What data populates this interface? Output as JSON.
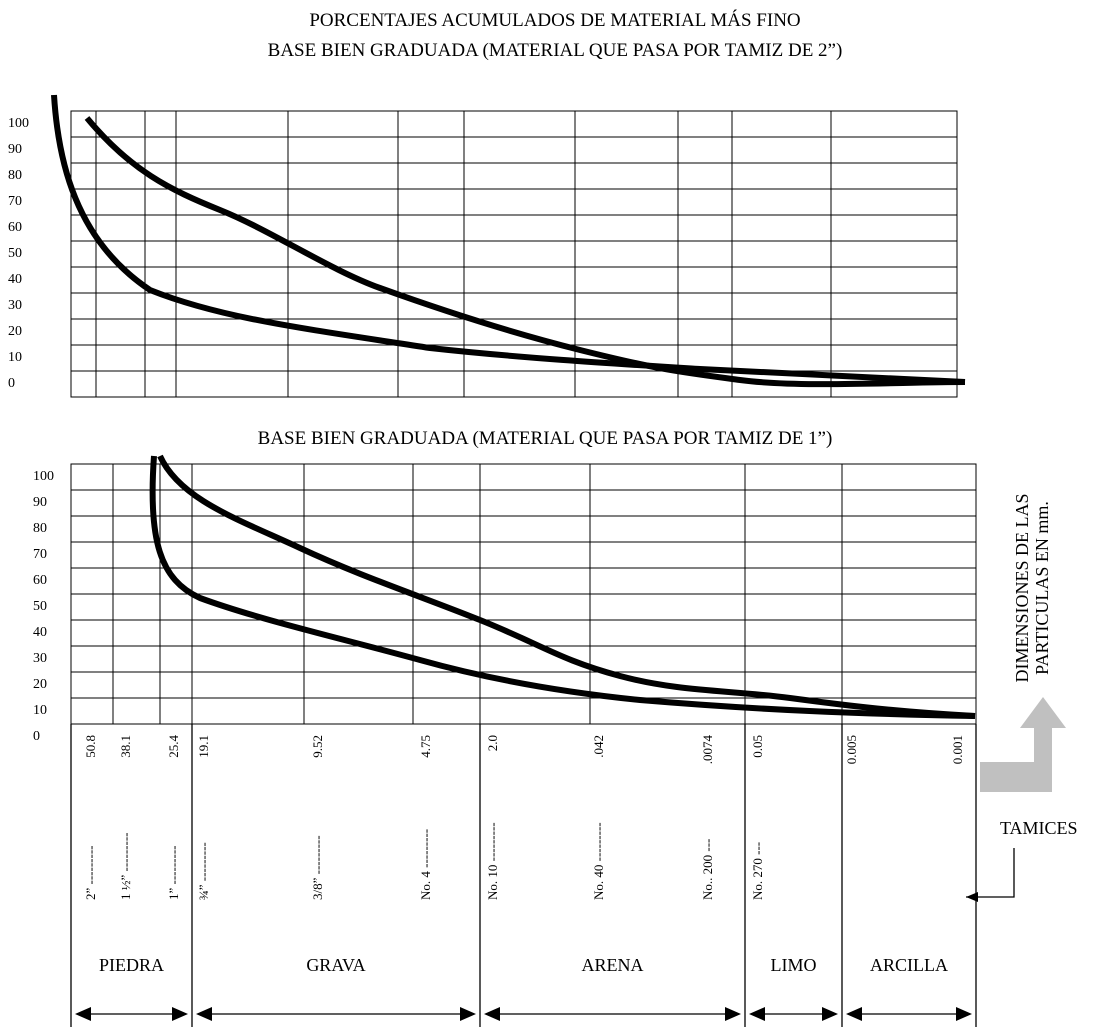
{
  "title_line1": "PORCENTAJES ACUMULADOS DE MATERIAL MÁS FINO",
  "title_line2": "BASE BIEN GRADUADA (MATERIAL QUE PASA POR TAMIZ DE 2”)",
  "title_line3": "BASE BIEN GRADUADA (MATERIAL QUE PASA POR TAMIZ DE 1”)",
  "side_label_line1": "DIMENSIONES DE LAS",
  "side_label_line2": "PARTICULAS EN mm.",
  "tamices_label": "TAMICES",
  "colors": {
    "lines": "#000000",
    "arrow": "#c0c0c0",
    "background": "#ffffff"
  },
  "chart_data": [
    {
      "type": "line",
      "title": "BASE BIEN GRADUADA (MATERIAL QUE PASA POR TAMIZ DE 2”)",
      "yticks": [
        "100",
        "90",
        "80",
        "70",
        "60",
        "50",
        "40",
        "30",
        "20",
        "10",
        "0"
      ],
      "ylim": [
        0,
        100
      ],
      "x_scale": "sieve positions (log)",
      "series": [
        {
          "x": [
            "2”",
            "1”",
            "3/4”",
            "3/8”",
            "No. 4",
            "No. 10",
            "No. 40",
            "No. 200",
            "0.005"
          ],
          "values": [
            100,
            87,
            74,
            55,
            41,
            30,
            19,
            10,
            6
          ]
        },
        {
          "x": [
            "2”",
            "1½”",
            "1”",
            "3/4”",
            "3/8”",
            "No. 4",
            "No. 10",
            "No. 40",
            "No. 200",
            "0.005",
            "0.001"
          ],
          "values": [
            68,
            44,
            35,
            29,
            23,
            20,
            16,
            13,
            11,
            7,
            5
          ]
        }
      ]
    },
    {
      "type": "line",
      "title": "BASE BIEN GRADUADA (MATERIAL QUE PASA POR TAMIZ DE 1”)",
      "yticks": [
        "100",
        "90",
        "80",
        "70",
        "60",
        "50",
        "40",
        "30",
        "20",
        "10",
        "0"
      ],
      "ylim": [
        0,
        100
      ],
      "sieves": [
        {
          "name": "2” ---------",
          "mm": "50.8"
        },
        {
          "name": "1 ½” ---------",
          "mm": "38.1"
        },
        {
          "name": "1” ---------",
          "mm": "25.4"
        },
        {
          "name": "¾” ---------",
          "mm": "19.1"
        },
        {
          "name": "3/8” ---------",
          "mm": "9.52"
        },
        {
          "name": "No. 4 ---------",
          "mm": "4.75"
        },
        {
          "name": "No. 10 ---------",
          "mm": "2.0"
        },
        {
          "name": "No. 40 ---------",
          "mm": ".042"
        },
        {
          "name": "No.. 200 ---",
          "mm": ".0074"
        },
        {
          "name": "No. 270 ---",
          "mm": "0.05"
        },
        {
          "name": "",
          "mm": "0.005"
        },
        {
          "name": "",
          "mm": "0.001"
        }
      ],
      "categories": [
        "PIEDRA",
        "GRAVA",
        "ARENA",
        "LIMO",
        "ARCILLA"
      ],
      "series": [
        {
          "x": [
            "1”",
            "3/4”",
            "3/8”",
            "No. 4",
            "No. 10",
            "No. 40",
            "No. 200",
            "0.005"
          ],
          "values": [
            100,
            92,
            80,
            67,
            48,
            33,
            23,
            11
          ]
        },
        {
          "x": [
            "1½”",
            "1”",
            "3/4”",
            "3/8”",
            "No. 4",
            "No. 10",
            "No. 40",
            "No. 200",
            "0.005",
            "0.001"
          ],
          "values": [
            100,
            67,
            56,
            43,
            33,
            23,
            15,
            11,
            8,
            5
          ]
        }
      ]
    }
  ]
}
